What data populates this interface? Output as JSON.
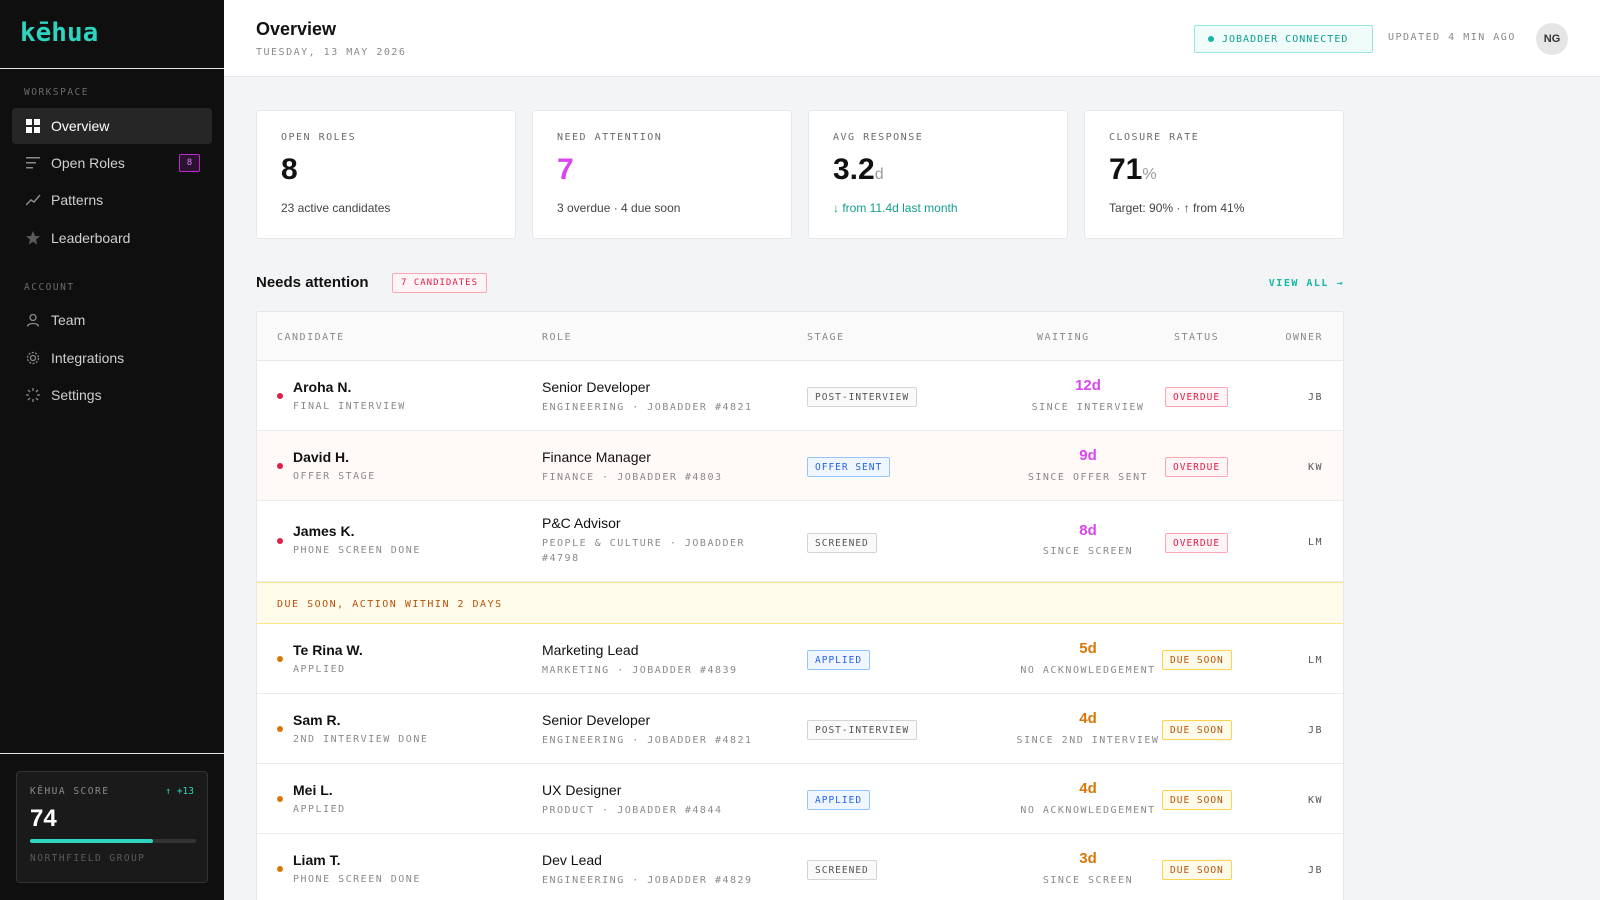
{
  "brand": {
    "logo": "kēhua"
  },
  "sidebar": {
    "workspace_label": "WORKSPACE",
    "account_label": "ACCOUNT",
    "items": [
      {
        "label": "Overview",
        "icon": "grid-icon"
      },
      {
        "label": "Open Roles",
        "icon": "list-icon",
        "badge": "8"
      },
      {
        "label": "Patterns",
        "icon": "trend-icon"
      },
      {
        "label": "Leaderboard",
        "icon": "star-icon"
      },
      {
        "label": "Team",
        "icon": "user-icon"
      },
      {
        "label": "Integrations",
        "icon": "gear-icon"
      },
      {
        "label": "Settings",
        "icon": "spinner-icon"
      }
    ],
    "score": {
      "label": "KĒHUA SCORE",
      "delta": "↑ +13",
      "value": "74",
      "level": 0.74,
      "org": "NORTHFIELD GROUP"
    }
  },
  "header": {
    "title": "Overview",
    "date": "TUESDAY, 13 MAY 2026",
    "connection": "JOBADDER CONNECTED",
    "updated": "UPDATED 4 MIN AGO",
    "avatar": "NG"
  },
  "stats": [
    {
      "label": "OPEN ROLES",
      "value": "8",
      "unit": "",
      "sub": "23 active candidates"
    },
    {
      "label": "NEED ATTENTION",
      "value": "7",
      "unit": "",
      "sub": "3 overdue · 4 due soon"
    },
    {
      "label": "AVG RESPONSE",
      "value": "3.2",
      "unit": "d",
      "sub": "↓ from 11.4d last month"
    },
    {
      "label": "CLOSURE RATE",
      "value": "71",
      "unit": "%",
      "sub": "Target: 90% · ↑ from 41%"
    }
  ],
  "attention": {
    "title": "Needs attention",
    "badge": "7 CANDIDATES",
    "view_all": "VIEW ALL →",
    "columns": [
      "CANDIDATE",
      "ROLE",
      "STAGE",
      "WAITING",
      "STATUS",
      "OWNER"
    ],
    "due_soon_divider": "DUE SOON, ACTION WITHIN 2 DAYS",
    "rows": [
      {
        "name": "Aroha N.",
        "sub": "FINAL INTERVIEW",
        "role": "Senior Developer",
        "role_sub": "ENGINEERING · JOBADDER #4821",
        "stage": "POST-INTERVIEW",
        "wait": "12d",
        "wait_sub": "SINCE INTERVIEW",
        "status": "OVERDUE",
        "owner": "JB"
      },
      {
        "name": "David H.",
        "sub": "OFFER STAGE",
        "role": "Finance Manager",
        "role_sub": "FINANCE · JOBADDER #4803",
        "stage": "OFFER SENT",
        "wait": "9d",
        "wait_sub": "SINCE OFFER SENT",
        "status": "OVERDUE",
        "owner": "KW"
      },
      {
        "name": "James K.",
        "sub": "PHONE SCREEN DONE",
        "role": "P&C Advisor",
        "role_sub": "PEOPLE & CULTURE · JOBADDER #4798",
        "stage": "SCREENED",
        "wait": "8d",
        "wait_sub": "SINCE SCREEN",
        "status": "OVERDUE",
        "owner": "LM"
      },
      {
        "name": "Te Rina W.",
        "sub": "APPLIED",
        "role": "Marketing Lead",
        "role_sub": "MARKETING · JOBADDER #4839",
        "stage": "APPLIED",
        "wait": "5d",
        "wait_sub": "NO ACKNOWLEDGEMENT",
        "status": "DUE SOON",
        "owner": "LM"
      },
      {
        "name": "Sam R.",
        "sub": "2ND INTERVIEW DONE",
        "role": "Senior Developer",
        "role_sub": "ENGINEERING · JOBADDER #4821",
        "stage": "POST-INTERVIEW",
        "wait": "4d",
        "wait_sub": "SINCE 2ND INTERVIEW",
        "status": "DUE SOON",
        "owner": "JB"
      },
      {
        "name": "Mei L.",
        "sub": "APPLIED",
        "role": "UX Designer",
        "role_sub": "PRODUCT · JOBADDER #4844",
        "stage": "APPLIED",
        "wait": "4d",
        "wait_sub": "NO ACKNOWLEDGEMENT",
        "status": "DUE SOON",
        "owner": "KW"
      },
      {
        "name": "Liam T.",
        "sub": "PHONE SCREEN DONE",
        "role": "Dev Lead",
        "role_sub": "ENGINEERING · JOBADDER #4829",
        "stage": "SCREENED",
        "wait": "3d",
        "wait_sub": "SINCE SCREEN",
        "status": "DUE SOON",
        "owner": "JB"
      }
    ]
  },
  "colors": {
    "accent": "#2dd4bf",
    "overdue": "#e11d48",
    "due_soon": "#d97706",
    "magenta": "#d946ef"
  }
}
